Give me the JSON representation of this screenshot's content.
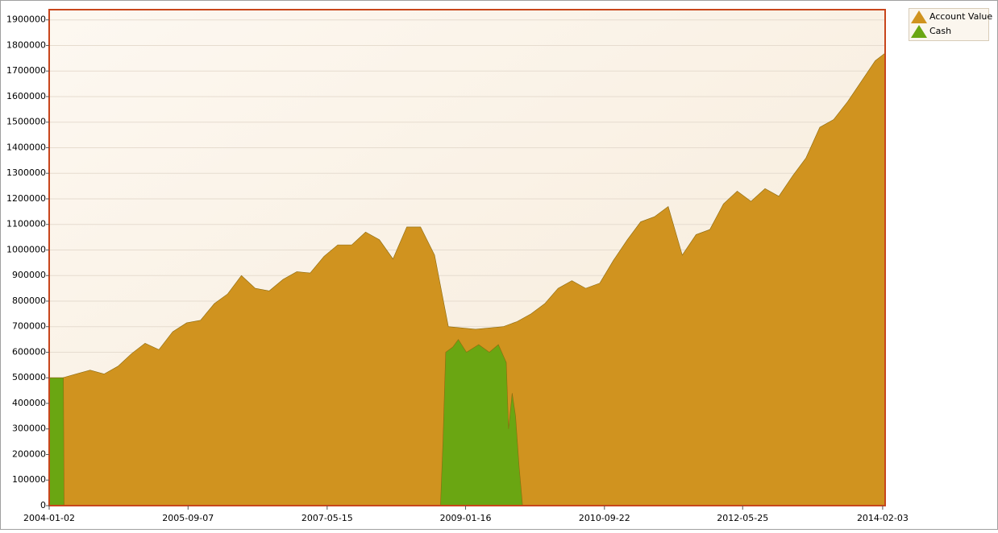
{
  "chart_data": {
    "type": "area",
    "xlim": [
      "2004-01-02",
      "2014-02-14"
    ],
    "ylim": [
      0,
      1940000
    ],
    "xticks": [
      "2004-01-02",
      "2005-09-07",
      "2007-05-15",
      "2009-01-16",
      "2010-09-22",
      "2012-05-25",
      "2014-02-03"
    ],
    "yticks": [
      0,
      100000,
      200000,
      300000,
      400000,
      500000,
      600000,
      700000,
      800000,
      900000,
      1000000,
      1100000,
      1200000,
      1300000,
      1400000,
      1500000,
      1600000,
      1700000,
      1800000,
      1900000
    ],
    "grid": true,
    "legend": "top-right",
    "series": [
      {
        "name": "Account Value",
        "color": "#d0931f",
        "x": [
          "2004-01-02",
          "2004-03-01",
          "2004-05-01",
          "2004-07-01",
          "2004-09-01",
          "2004-11-01",
          "2005-01-01",
          "2005-03-01",
          "2005-05-01",
          "2005-07-01",
          "2005-09-01",
          "2005-11-01",
          "2006-01-01",
          "2006-03-01",
          "2006-05-01",
          "2006-07-01",
          "2006-09-01",
          "2006-11-01",
          "2007-01-01",
          "2007-03-01",
          "2007-05-01",
          "2007-07-01",
          "2007-09-01",
          "2007-11-01",
          "2008-01-01",
          "2008-03-01",
          "2008-05-01",
          "2008-07-01",
          "2008-09-01",
          "2008-11-01",
          "2009-01-01",
          "2009-03-01",
          "2009-05-01",
          "2009-07-01",
          "2009-09-01",
          "2009-11-01",
          "2010-01-01",
          "2010-03-01",
          "2010-05-01",
          "2010-07-01",
          "2010-09-01",
          "2010-11-01",
          "2011-01-01",
          "2011-03-01",
          "2011-05-01",
          "2011-07-01",
          "2011-09-01",
          "2011-11-01",
          "2012-01-01",
          "2012-03-01",
          "2012-05-01",
          "2012-07-01",
          "2012-09-01",
          "2012-11-01",
          "2013-01-01",
          "2013-03-01",
          "2013-05-01",
          "2013-07-01",
          "2013-09-01",
          "2013-11-01",
          "2014-01-01",
          "2014-02-14"
        ],
        "values": [
          500000,
          500000,
          515000,
          530000,
          515000,
          545000,
          595000,
          635000,
          610000,
          680000,
          715000,
          725000,
          790000,
          828000,
          900000,
          850000,
          840000,
          885000,
          915000,
          910000,
          975000,
          1020000,
          1020000,
          1070000,
          1040000,
          965000,
          1090000,
          1090000,
          980000,
          700000,
          695000,
          690000,
          695000,
          700000,
          720000,
          750000,
          790000,
          850000,
          880000,
          850000,
          870000,
          960000,
          1040000,
          1110000,
          1130000,
          1170000,
          980000,
          1060000,
          1080000,
          1180000,
          1230000,
          1190000,
          1240000,
          1210000,
          1290000,
          1360000,
          1480000,
          1510000,
          1580000,
          1660000,
          1740000,
          1770000
        ]
      },
      {
        "name": "Cash",
        "color": "#6aa612",
        "x": [
          "2004-01-02",
          "2004-03-05",
          "2004-03-08",
          "2008-09-27",
          "2008-10-08",
          "2008-10-20",
          "2008-11-20",
          "2008-12-15",
          "2009-01-20",
          "2009-03-15",
          "2009-05-01",
          "2009-06-10",
          "2009-07-15",
          "2009-07-25",
          "2009-08-10",
          "2009-08-25",
          "2009-09-10",
          "2009-09-25",
          "2014-02-14"
        ],
        "values": [
          500000,
          500000,
          0,
          0,
          250000,
          600000,
          620000,
          650000,
          600000,
          630000,
          600000,
          630000,
          560000,
          300000,
          440000,
          350000,
          150000,
          0,
          0
        ]
      }
    ]
  }
}
